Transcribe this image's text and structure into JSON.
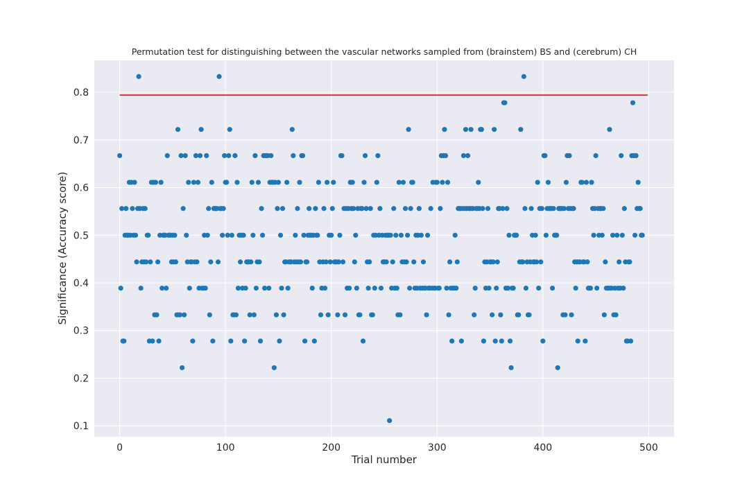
{
  "chart_data": {
    "type": "scatter",
    "title": "Permutation test for distinguishing between the vascular networks sampled from (brainstem) BS and (cerebrum) CH",
    "xlabel": "Trial number",
    "ylabel": "Significance (Accuracy score)",
    "xlim": [
      -24,
      524
    ],
    "ylim": [
      0.077,
      0.867
    ],
    "xticks": [
      0,
      100,
      200,
      300,
      400,
      500
    ],
    "xtick_labels": [
      "0",
      "100",
      "200",
      "300",
      "400",
      "500"
    ],
    "yticks": [
      0.1,
      0.2,
      0.3,
      0.4,
      0.5,
      0.6,
      0.7,
      0.8
    ],
    "ytick_labels": [
      "0.1",
      "0.2",
      "0.3",
      "0.4",
      "0.5",
      "0.6",
      "0.7",
      "0.8"
    ],
    "grid": true,
    "style": "seaborn-darkgrid",
    "colors": {
      "points": "#1f77b4",
      "reference_line": "#d62728",
      "plot_background": "#eaeaf2",
      "grid": "#ffffff"
    },
    "reference_line": {
      "value": 0.794,
      "x_range": [
        0,
        499
      ]
    },
    "series": [
      {
        "values": [
          0.667,
          0.389,
          0.556,
          0.278,
          0.278,
          0.5,
          0.556,
          0.5,
          0.5,
          0.611,
          0.5,
          0.611,
          0.556,
          0.5,
          0.611,
          0.5,
          0.444,
          0.556,
          0.833,
          0.556,
          0.389,
          0.444,
          0.556,
          0.444,
          0.556,
          0.444,
          0.5,
          0.5,
          0.278,
          0.444,
          0.611,
          0.278,
          0.611,
          0.333,
          0.611,
          0.333,
          0.444,
          0.278,
          0.5,
          0.611,
          0.389,
          0.5,
          0.5,
          0.5,
          0.389,
          0.667,
          0.5,
          0.5,
          0.5,
          0.444,
          0.5,
          0.444,
          0.5,
          0.444,
          0.333,
          0.722,
          0.333,
          0.333,
          0.667,
          0.222,
          0.556,
          0.333,
          0.667,
          0.5,
          0.444,
          0.611,
          0.389,
          0.444,
          0.444,
          0.278,
          0.611,
          0.444,
          0.667,
          0.444,
          0.611,
          0.389,
          0.667,
          0.722,
          0.389,
          0.389,
          0.5,
          0.389,
          0.667,
          0.5,
          0.556,
          0.333,
          0.444,
          0.611,
          0.278,
          0.556,
          0.556,
          0.556,
          0.556,
          0.444,
          0.833,
          0.556,
          0.556,
          0.5,
          0.556,
          0.667,
          0.611,
          0.611,
          0.5,
          0.667,
          0.722,
          0.278,
          0.5,
          0.333,
          0.333,
          0.667,
          0.333,
          0.611,
          0.389,
          0.5,
          0.444,
          0.5,
          0.389,
          0.5,
          0.278,
          0.389,
          0.444,
          0.444,
          0.444,
          0.333,
          0.444,
          0.611,
          0.5,
          0.333,
          0.667,
          0.389,
          0.444,
          0.611,
          0.444,
          0.278,
          0.556,
          0.5,
          0.667,
          0.389,
          0.667,
          0.667,
          0.667,
          0.389,
          0.611,
          0.667,
          0.611,
          0.611,
          0.222,
          0.611,
          0.333,
          0.556,
          0.611,
          0.278,
          0.5,
          0.389,
          0.556,
          0.333,
          0.444,
          0.444,
          0.611,
          0.389,
          0.444,
          0.444,
          0.444,
          0.722,
          0.667,
          0.444,
          0.5,
          0.444,
          0.556,
          0.444,
          0.611,
          0.444,
          0.667,
          0.667,
          0.5,
          0.278,
          0.444,
          0.444,
          0.5,
          0.556,
          0.5,
          0.5,
          0.389,
          0.5,
          0.278,
          0.556,
          0.5,
          0.5,
          0.611,
          0.444,
          0.333,
          0.389,
          0.444,
          0.556,
          0.389,
          0.444,
          0.611,
          0.333,
          0.5,
          0.444,
          0.5,
          0.556,
          0.611,
          0.444,
          0.444,
          0.444,
          0.333,
          0.444,
          0.5,
          0.667,
          0.667,
          0.444,
          0.556,
          0.333,
          0.556,
          0.389,
          0.556,
          0.389,
          0.611,
          0.556,
          0.611,
          0.556,
          0.444,
          0.5,
          0.389,
          0.556,
          0.333,
          0.333,
          0.556,
          0.556,
          0.278,
          0.611,
          0.667,
          0.556,
          0.444,
          0.389,
          0.444,
          0.556,
          0.333,
          0.333,
          0.5,
          0.389,
          0.5,
          0.611,
          0.667,
          0.5,
          0.556,
          0.389,
          0.5,
          0.444
        ]
      }
    ],
    "series_b": [
      0.444,
      0.5,
      0.444,
      0.5,
      0.5,
      0.111,
      0.5,
      0.389,
      0.444,
      0.556,
      0.389,
      0.5,
      0.389,
      0.333,
      0.611,
      0.333,
      0.5,
      0.444,
      0.611,
      0.444,
      0.556,
      0.444,
      0.5,
      0.722,
      0.389,
      0.556,
      0.611,
      0.611,
      0.444,
      0.389,
      0.5,
      0.389,
      0.5,
      0.556,
      0.389,
      0.5,
      0.389,
      0.444,
      0.389,
      0.389,
      0.333,
      0.5,
      0.389,
      0.389,
      0.556,
      0.389,
      0.611,
      0.389,
      0.389,
      0.611,
      0.611,
      0.389,
      0.389,
      0.556,
      0.667,
      0.611,
      0.667,
      0.722,
      0.667,
      0.389,
      0.611,
      0.333,
      0.444,
      0.389,
      0.278,
      0.389,
      0.389,
      0.5,
      0.389,
      0.444,
      0.556,
      0.556,
      0.556,
      0.278,
      0.556,
      0.667,
      0.556,
      0.722,
      0.556,
      0.667,
      0.556,
      0.556,
      0.722,
      0.556,
      0.556,
      0.333,
      0.389,
      0.556,
      0.556,
      0.611,
      0.556,
      0.722,
      0.722,
      0.556,
      0.278,
      0.444,
      0.389,
      0.444,
      0.556,
      0.389,
      0.444,
      0.444,
      0.333,
      0.444,
      0.722,
      0.278,
      0.389,
      0.444,
      0.556,
      0.556,
      0.333,
      0.278,
      0.556,
      0.778,
      0.778,
      0.389,
      0.556,
      0.389,
      0.5,
      0.278,
      0.222,
      0.389,
      0.389,
      0.5,
      0.5,
      0.5,
      0.333,
      0.333,
      0.444,
      0.722,
      0.444,
      0.444,
      0.833,
      0.556,
      0.389,
      0.444,
      0.333,
      0.333,
      0.444,
      0.556,
      0.5,
      0.444,
      0.444,
      0.5,
      0.444,
      0.611,
      0.389,
      0.556,
      0.444,
      0.556,
      0.278,
      0.667,
      0.667,
      0.5,
      0.556,
      0.611,
      0.556,
      0.556,
      0.556,
      0.389,
      0.556,
      0.5,
      0.5,
      0.5,
      0.222,
      0.556,
      0.556,
      0.556,
      0.556,
      0.333,
      0.556,
      0.333,
      0.611,
      0.667,
      0.556,
      0.667,
      0.556,
      0.333,
      0.556,
      0.556,
      0.444,
      0.389,
      0.444,
      0.278,
      0.444,
      0.444,
      0.611,
      0.611,
      0.444,
      0.444,
      0.278,
      0.611,
      0.444,
      0.389,
      0.389,
      0.389,
      0.611,
      0.556,
      0.5,
      0.556,
      0.667,
      0.389,
      0.556,
      0.5,
      0.556,
      0.556,
      0.5,
      0.556,
      0.333,
      0.444,
      0.389,
      0.389,
      0.389,
      0.722,
      0.389,
      0.389,
      0.5,
      0.333,
      0.389,
      0.333,
      0.5,
      0.389,
      0.444,
      0.389,
      0.667,
      0.5,
      0.389,
      0.556,
      0.444,
      0.278,
      0.278,
      0.444,
      0.444,
      0.278,
      0.667,
      0.778,
      0.667,
      0.5,
      0.667,
      0.556,
      0.611,
      0.556,
      0.556,
      0.5,
      0.5
    ]
  }
}
